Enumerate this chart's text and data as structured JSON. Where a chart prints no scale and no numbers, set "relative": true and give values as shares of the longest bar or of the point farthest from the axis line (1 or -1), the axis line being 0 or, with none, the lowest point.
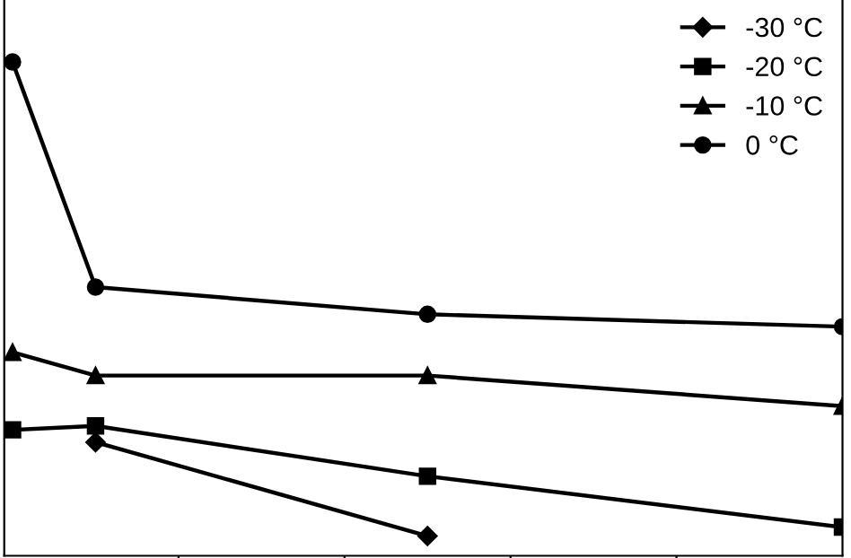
{
  "chart_data": {
    "type": "line",
    "relative": true,
    "categories": [
      null,
      null,
      null,
      null,
      null,
      null,
      null,
      null,
      null,
      null,
      null
    ],
    "series": [
      {
        "name": "-30 °C",
        "color": "#000000",
        "marker": "diamond",
        "values": [
          null,
          0.23,
          null,
          null,
          null,
          0.04,
          null,
          null,
          null,
          null,
          null
        ]
      },
      {
        "name": "-20 °C",
        "color": "#000000",
        "marker": "square",
        "values": [
          0.255,
          0.263,
          null,
          null,
          null,
          0.161,
          null,
          null,
          null,
          null,
          0.058
        ]
      },
      {
        "name": "-10 °C",
        "color": "#000000",
        "marker": "triangle",
        "values": [
          0.412,
          0.365,
          null,
          null,
          null,
          0.365,
          null,
          null,
          null,
          null,
          0.303
        ]
      },
      {
        "name": "0 °C",
        "color": "#000000",
        "marker": "circle",
        "values": [
          1,
          0.544,
          null,
          null,
          null,
          0.489,
          null,
          null,
          null,
          null,
          0.464
        ]
      }
    ],
    "legend": "top right",
    "grid": false,
    "line_style": "solid"
  }
}
